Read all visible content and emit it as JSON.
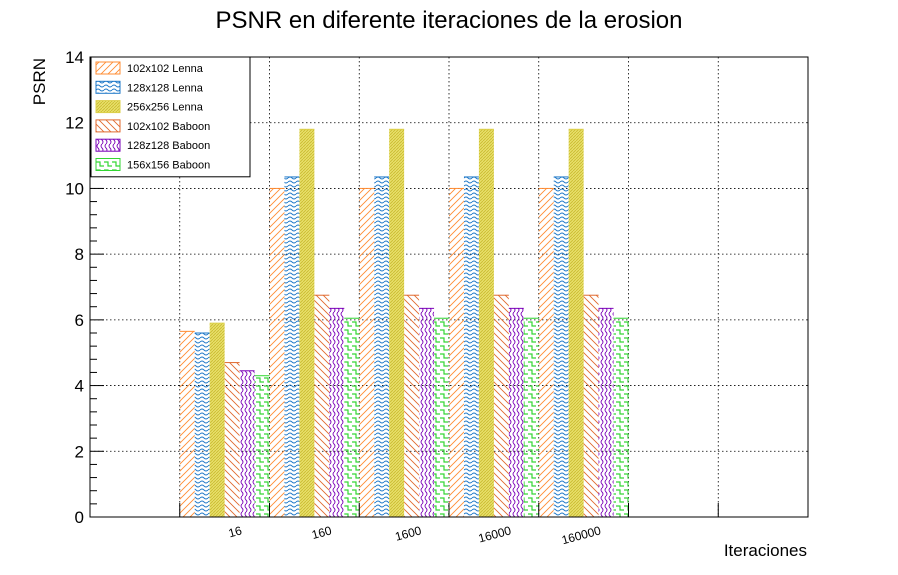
{
  "chart_data": {
    "type": "bar",
    "title": "PSNR en diferente iteraciones de la erosion",
    "xlabel": "Iteraciones",
    "ylabel": "PSRN",
    "ylim": [
      0,
      14
    ],
    "yticks": [
      "0",
      "2",
      "4",
      "6",
      "8",
      "10",
      "12",
      "14"
    ],
    "grid": true,
    "legend_position": "top-left",
    "categories": [
      "",
      "16",
      "160",
      "1600",
      "16000",
      "160000",
      "",
      ""
    ],
    "series": [
      {
        "name": "102x102 Lenna",
        "color": "#ff8c33",
        "pattern": "diag-forward",
        "values": [
          0,
          5.65,
          10.0,
          10.0,
          10.0,
          10.0,
          0,
          0
        ]
      },
      {
        "name": "128x128 Lenna",
        "color": "#1e78c8",
        "pattern": "wave-horizontal",
        "values": [
          0,
          5.6,
          10.35,
          10.35,
          10.35,
          10.35,
          0,
          0
        ]
      },
      {
        "name": "256x256 Lenna",
        "color": "#dcd04a",
        "pattern": "dense-fill",
        "values": [
          0,
          5.9,
          11.8,
          11.8,
          11.8,
          11.8,
          0,
          0
        ]
      },
      {
        "name": "102x102 Baboon",
        "color": "#e0692e",
        "pattern": "diag-backward",
        "values": [
          0,
          4.7,
          6.75,
          6.75,
          6.75,
          6.75,
          0,
          0
        ]
      },
      {
        "name": "128z128 Baboon",
        "color": "#7a00b8",
        "pattern": "wave-vertical",
        "values": [
          0,
          4.45,
          6.35,
          6.35,
          6.35,
          6.35,
          0,
          0
        ]
      },
      {
        "name": "156x156 Baboon",
        "color": "#33d633",
        "pattern": "steps",
        "values": [
          0,
          4.3,
          6.05,
          6.05,
          6.05,
          6.05,
          0,
          0
        ]
      }
    ]
  }
}
